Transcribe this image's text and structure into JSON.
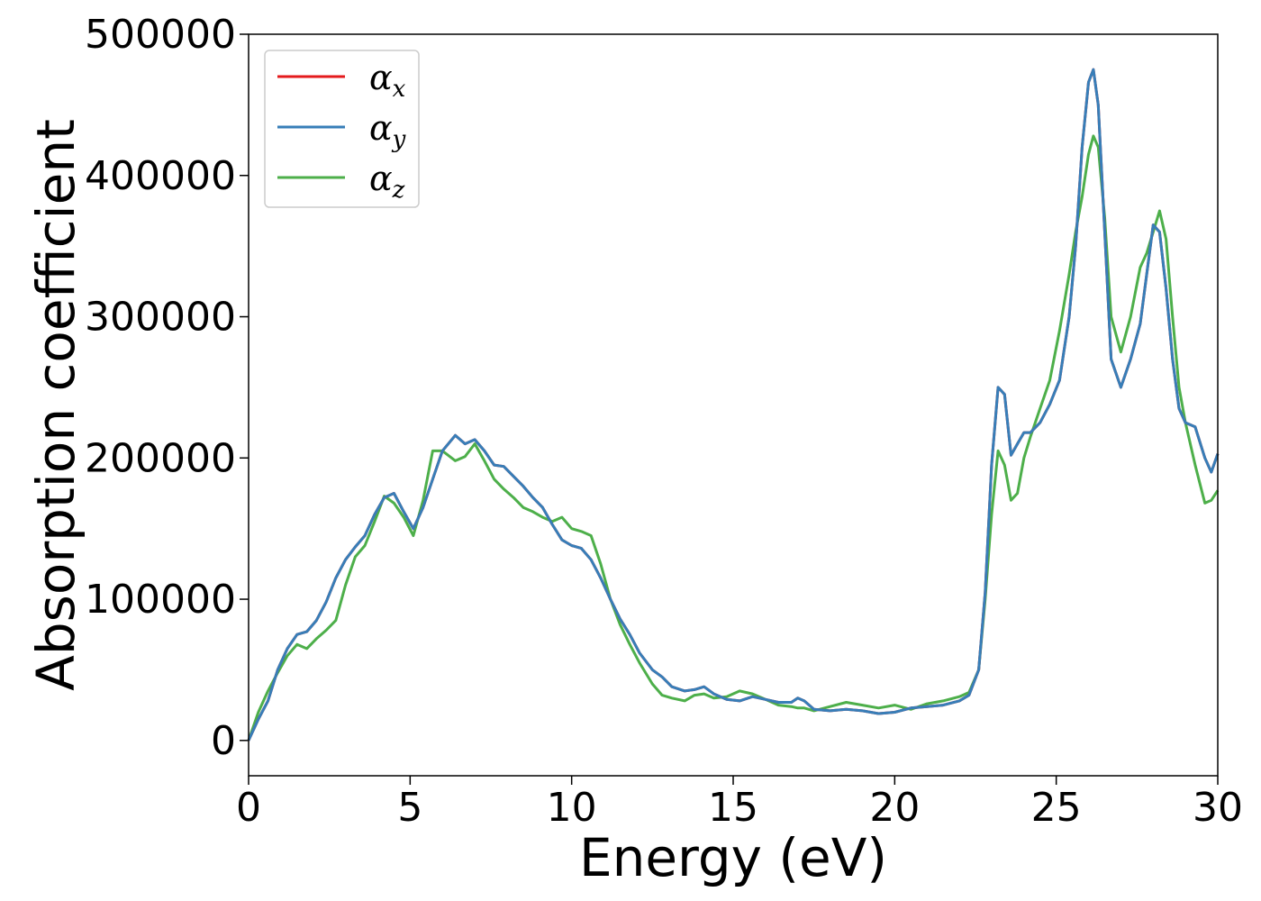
{
  "chart_data": {
    "type": "line",
    "xlabel": "Energy (eV)",
    "ylabel": "Absorption coefficient",
    "xlim": [
      0,
      30
    ],
    "ylim": [
      -25000,
      500000
    ],
    "xticks": [
      "0",
      "5",
      "10",
      "15",
      "20",
      "25",
      "30"
    ],
    "yticks": [
      "0",
      "100000",
      "200000",
      "300000",
      "400000",
      "500000"
    ],
    "grid": false,
    "legend_position": "top-left",
    "series": [
      {
        "name": "α_x",
        "legend_base": "α",
        "legend_sub": "x",
        "color": "#e41a1c",
        "x": [
          0,
          0.3,
          0.6,
          0.9,
          1.2,
          1.5,
          1.8,
          2.1,
          2.4,
          2.7,
          3.0,
          3.3,
          3.6,
          3.9,
          4.2,
          4.5,
          4.8,
          5.1,
          5.4,
          5.7,
          6.0,
          6.4,
          6.7,
          7.0,
          7.3,
          7.6,
          7.9,
          8.2,
          8.5,
          8.8,
          9.1,
          9.4,
          9.7,
          10.0,
          10.3,
          10.6,
          10.9,
          11.2,
          11.5,
          11.8,
          12.1,
          12.5,
          12.8,
          13.1,
          13.5,
          13.8,
          14.1,
          14.4,
          14.8,
          15.2,
          15.6,
          16.0,
          16.4,
          16.8,
          17.0,
          17.2,
          17.5,
          18.0,
          18.5,
          19.0,
          19.5,
          20.0,
          20.5,
          21.0,
          21.5,
          22.0,
          22.3,
          22.6,
          22.8,
          23.0,
          23.2,
          23.4,
          23.6,
          23.8,
          24.0,
          24.2,
          24.5,
          24.8,
          25.1,
          25.4,
          25.6,
          25.8,
          26.0,
          26.15,
          26.3,
          26.5,
          26.7,
          27.0,
          27.3,
          27.6,
          27.8,
          28.0,
          28.2,
          28.4,
          28.6,
          28.8,
          29.0,
          29.3,
          29.6,
          29.8,
          30.0
        ],
        "y": [
          0,
          15000,
          28000,
          50000,
          65000,
          75000,
          77000,
          85000,
          98000,
          115000,
          128000,
          137000,
          145000,
          160000,
          172000,
          175000,
          162000,
          150000,
          165000,
          185000,
          205000,
          216000,
          210000,
          213000,
          205000,
          195000,
          194000,
          187000,
          180000,
          172000,
          165000,
          153000,
          142000,
          138000,
          136000,
          128000,
          115000,
          100000,
          86000,
          75000,
          62000,
          50000,
          45000,
          38000,
          35000,
          36000,
          38000,
          33000,
          29000,
          28000,
          31000,
          29000,
          27000,
          27000,
          30000,
          28000,
          22000,
          21000,
          22000,
          21000,
          19000,
          20000,
          23000,
          24000,
          25000,
          28000,
          32000,
          50000,
          105000,
          195000,
          250000,
          245000,
          202000,
          210000,
          218000,
          218000,
          225000,
          238000,
          255000,
          300000,
          350000,
          420000,
          466000,
          475000,
          450000,
          360000,
          270000,
          250000,
          270000,
          295000,
          330000,
          365000,
          360000,
          320000,
          270000,
          235000,
          225000,
          222000,
          200000,
          190000,
          203000
        ]
      },
      {
        "name": "α_y",
        "legend_base": "α",
        "legend_sub": "y",
        "color": "#377eb8",
        "x": [
          0,
          0.3,
          0.6,
          0.9,
          1.2,
          1.5,
          1.8,
          2.1,
          2.4,
          2.7,
          3.0,
          3.3,
          3.6,
          3.9,
          4.2,
          4.5,
          4.8,
          5.1,
          5.4,
          5.7,
          6.0,
          6.4,
          6.7,
          7.0,
          7.3,
          7.6,
          7.9,
          8.2,
          8.5,
          8.8,
          9.1,
          9.4,
          9.7,
          10.0,
          10.3,
          10.6,
          10.9,
          11.2,
          11.5,
          11.8,
          12.1,
          12.5,
          12.8,
          13.1,
          13.5,
          13.8,
          14.1,
          14.4,
          14.8,
          15.2,
          15.6,
          16.0,
          16.4,
          16.8,
          17.0,
          17.2,
          17.5,
          18.0,
          18.5,
          19.0,
          19.5,
          20.0,
          20.5,
          21.0,
          21.5,
          22.0,
          22.3,
          22.6,
          22.8,
          23.0,
          23.2,
          23.4,
          23.6,
          23.8,
          24.0,
          24.2,
          24.5,
          24.8,
          25.1,
          25.4,
          25.6,
          25.8,
          26.0,
          26.15,
          26.3,
          26.5,
          26.7,
          27.0,
          27.3,
          27.6,
          27.8,
          28.0,
          28.2,
          28.4,
          28.6,
          28.8,
          29.0,
          29.3,
          29.6,
          29.8,
          30.0
        ],
        "y": [
          0,
          15000,
          28000,
          50000,
          65000,
          75000,
          77000,
          85000,
          98000,
          115000,
          128000,
          137000,
          145000,
          160000,
          172000,
          175000,
          162000,
          150000,
          165000,
          185000,
          205000,
          216000,
          210000,
          213000,
          205000,
          195000,
          194000,
          187000,
          180000,
          172000,
          165000,
          153000,
          142000,
          138000,
          136000,
          128000,
          115000,
          100000,
          86000,
          75000,
          62000,
          50000,
          45000,
          38000,
          35000,
          36000,
          38000,
          33000,
          29000,
          28000,
          31000,
          29000,
          27000,
          27000,
          30000,
          28000,
          22000,
          21000,
          22000,
          21000,
          19000,
          20000,
          23000,
          24000,
          25000,
          28000,
          32000,
          50000,
          105000,
          195000,
          250000,
          245000,
          202000,
          210000,
          218000,
          218000,
          225000,
          238000,
          255000,
          300000,
          350000,
          420000,
          466000,
          475000,
          450000,
          360000,
          270000,
          250000,
          270000,
          295000,
          330000,
          365000,
          360000,
          320000,
          270000,
          235000,
          225000,
          222000,
          200000,
          190000,
          203000
        ]
      },
      {
        "name": "α_z",
        "legend_base": "α",
        "legend_sub": "z",
        "color": "#4daf4a",
        "x": [
          0,
          0.3,
          0.6,
          0.9,
          1.2,
          1.5,
          1.8,
          2.1,
          2.4,
          2.7,
          3.0,
          3.3,
          3.6,
          3.9,
          4.2,
          4.5,
          4.8,
          5.1,
          5.4,
          5.7,
          6.0,
          6.4,
          6.7,
          7.0,
          7.3,
          7.6,
          7.9,
          8.2,
          8.5,
          8.8,
          9.1,
          9.4,
          9.7,
          10.0,
          10.3,
          10.6,
          10.9,
          11.2,
          11.5,
          11.8,
          12.1,
          12.5,
          12.8,
          13.1,
          13.5,
          13.8,
          14.1,
          14.4,
          14.8,
          15.2,
          15.6,
          16.0,
          16.4,
          16.8,
          17.0,
          17.2,
          17.5,
          18.0,
          18.5,
          19.0,
          19.5,
          20.0,
          20.5,
          21.0,
          21.5,
          22.0,
          22.3,
          22.6,
          22.8,
          23.0,
          23.2,
          23.4,
          23.6,
          23.8,
          24.0,
          24.2,
          24.5,
          24.8,
          25.1,
          25.4,
          25.6,
          25.8,
          26.0,
          26.15,
          26.3,
          26.5,
          26.7,
          27.0,
          27.3,
          27.6,
          27.8,
          28.0,
          28.2,
          28.4,
          28.6,
          28.8,
          29.0,
          29.3,
          29.6,
          29.8,
          30.0
        ],
        "y": [
          0,
          20000,
          35000,
          48000,
          60000,
          68000,
          65000,
          72000,
          78000,
          85000,
          110000,
          130000,
          138000,
          155000,
          173000,
          168000,
          158000,
          145000,
          170000,
          205000,
          205000,
          198000,
          201000,
          210000,
          198000,
          185000,
          178000,
          172000,
          165000,
          162000,
          158000,
          155000,
          158000,
          150000,
          148000,
          145000,
          125000,
          100000,
          82000,
          68000,
          55000,
          40000,
          32000,
          30000,
          28000,
          32000,
          33000,
          30000,
          31000,
          35000,
          33000,
          29000,
          25000,
          24000,
          23000,
          23000,
          21000,
          24000,
          27000,
          25000,
          23000,
          25000,
          22000,
          26000,
          28000,
          31000,
          34000,
          50000,
          100000,
          160000,
          205000,
          195000,
          170000,
          175000,
          200000,
          215000,
          235000,
          255000,
          290000,
          330000,
          360000,
          385000,
          415000,
          428000,
          420000,
          370000,
          300000,
          275000,
          300000,
          335000,
          345000,
          360000,
          375000,
          355000,
          300000,
          250000,
          225000,
          195000,
          168000,
          170000,
          177000
        ]
      }
    ]
  }
}
